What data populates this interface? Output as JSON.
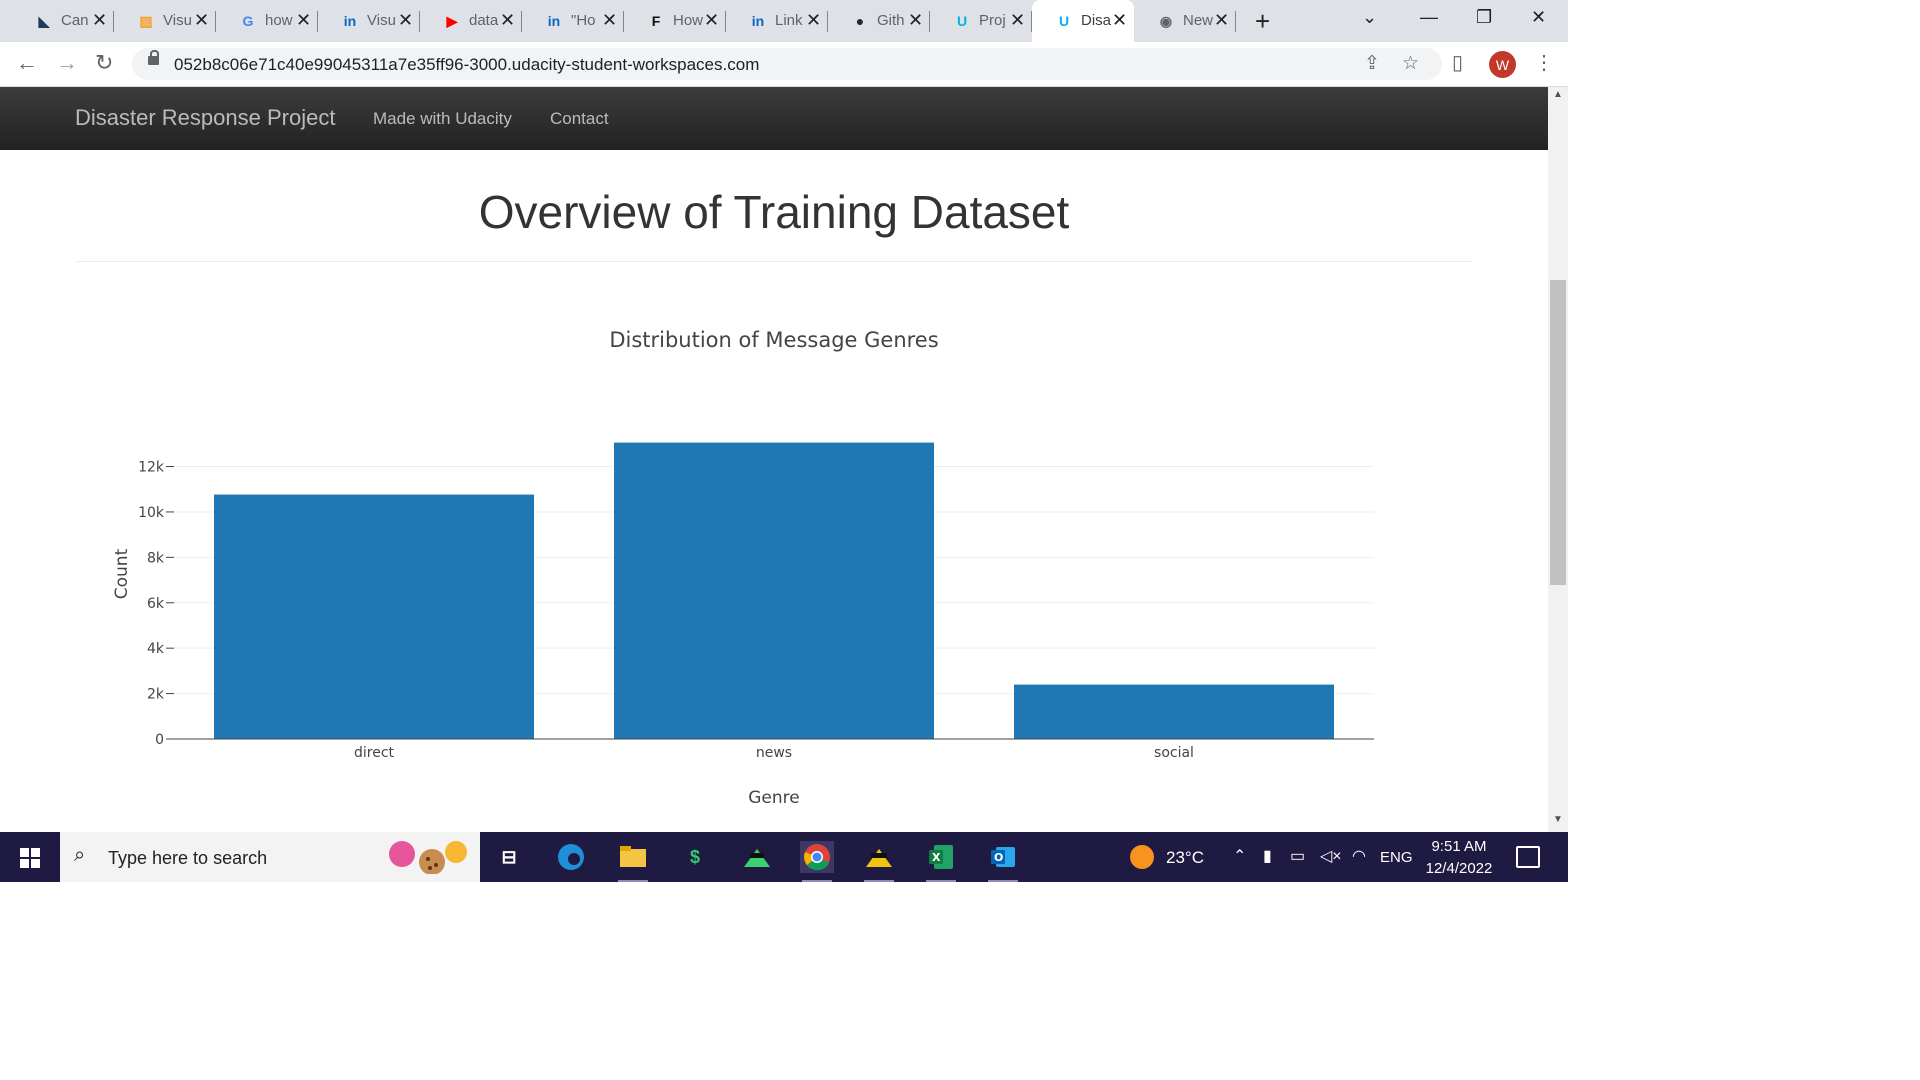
{
  "browser": {
    "tabs": [
      {
        "label": "Can",
        "icon": "canva-icon",
        "color": "#1e3a5f",
        "glyph": "◣"
      },
      {
        "label": "Visu",
        "icon": "pattern-icon",
        "color": "#f4a12b",
        "glyph": "▨"
      },
      {
        "label": "how",
        "icon": "google-icon",
        "color": "#4285f4",
        "glyph": "G"
      },
      {
        "label": "Visu",
        "icon": "linkedin-icon",
        "color": "#0a66c2",
        "glyph": "in"
      },
      {
        "label": "data",
        "icon": "youtube-icon",
        "color": "#ff0000",
        "glyph": "▶"
      },
      {
        "label": "\"Ho",
        "icon": "linkedin-icon",
        "color": "#0a66c2",
        "glyph": "in"
      },
      {
        "label": "How",
        "icon": "forbes-icon",
        "color": "#111111",
        "glyph": "F"
      },
      {
        "label": "Link",
        "icon": "linkedin-icon",
        "color": "#0a66c2",
        "glyph": "in"
      },
      {
        "label": "Gith",
        "icon": "github-icon",
        "color": "#24292f",
        "glyph": "●"
      },
      {
        "label": "Proj",
        "icon": "udacity-icon",
        "color": "#02b3e4",
        "glyph": "U"
      },
      {
        "label": "Disa",
        "icon": "udacity-icon",
        "color": "#02b3e4",
        "glyph": "U",
        "active": true
      },
      {
        "label": "New",
        "icon": "chrome-newtab-icon",
        "color": "#5f6368",
        "glyph": "◉"
      }
    ],
    "url": "052b8c06e71c40e99045311a7e35ff96-3000.udacity-student-workspaces.com",
    "profile_initial": "W"
  },
  "navbar": {
    "brand": "Disaster Response Project",
    "links": [
      "Made with Udacity",
      "Contact"
    ]
  },
  "page": {
    "title": "Overview of Training Dataset"
  },
  "chart_data": {
    "type": "bar",
    "title": "Distribution of Message Genres",
    "xlabel": "Genre",
    "ylabel": "Count",
    "categories": [
      "direct",
      "news",
      "social"
    ],
    "values": [
      10766,
      13054,
      2396
    ],
    "ylim": [
      0,
      13741
    ],
    "yticks": [
      0,
      2000,
      4000,
      6000,
      8000,
      10000,
      12000
    ],
    "ytick_labels": [
      "0",
      "2k",
      "4k",
      "6k",
      "8k",
      "10k",
      "12k"
    ],
    "bar_color": "#1f77b4",
    "grid": true,
    "legend": "none"
  },
  "taskbar": {
    "search_placeholder": "Type here to search",
    "temperature": "23°C",
    "language": "ENG",
    "time": "9:51 AM",
    "date": "12/4/2022"
  }
}
